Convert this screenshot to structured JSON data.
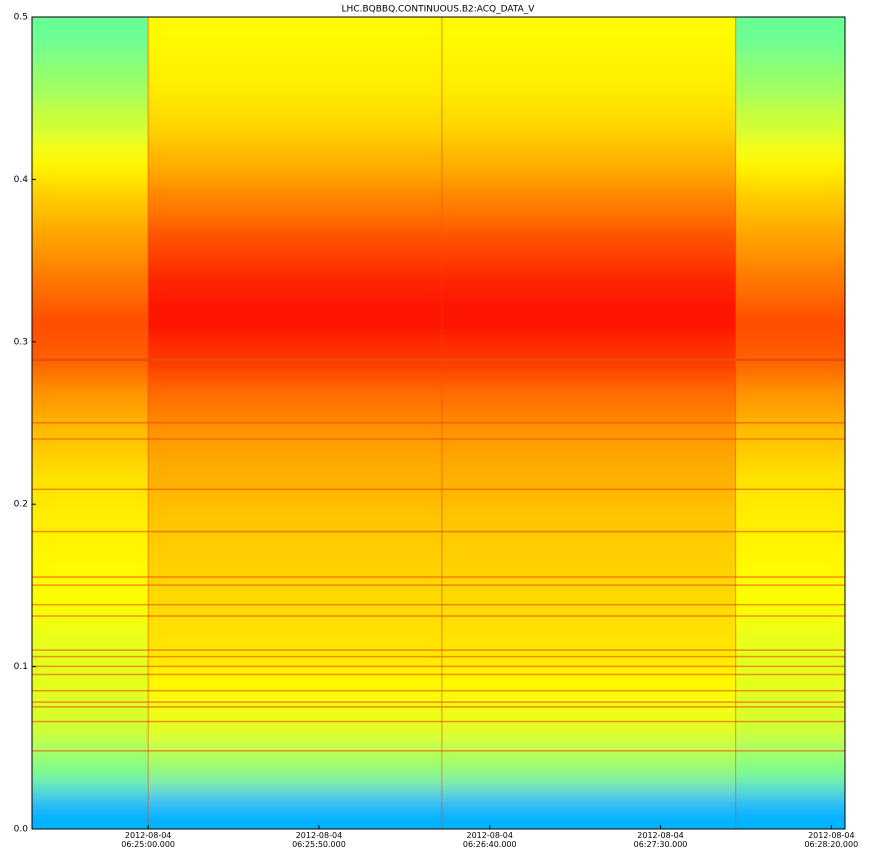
{
  "chart_data": {
    "type": "heatmap",
    "title": "LHC.BQBBQ.CONTINUOUS.B2:ACQ_DATA_V",
    "x_edges": [
      23066,
      23100,
      23186,
      23272,
      23304
    ],
    "y_edges": [
      0,
      0.025,
      0.05,
      0.075,
      0.1,
      0.125,
      0.15,
      0.175,
      0.2,
      0.225,
      0.25,
      0.275,
      0.3,
      0.325,
      0.35,
      0.375,
      0.4,
      0.425,
      0.45,
      0.475,
      0.5
    ],
    "z": [
      [
        0.3,
        0.5,
        0.58,
        0.6,
        0.6,
        0.62,
        0.63,
        0.64,
        0.65,
        0.68,
        0.72,
        0.78,
        0.8,
        0.76,
        0.72,
        0.68,
        0.63,
        0.57,
        0.52,
        0.48
      ],
      [
        0.3,
        0.52,
        0.6,
        0.63,
        0.65,
        0.66,
        0.67,
        0.68,
        0.7,
        0.72,
        0.76,
        0.82,
        0.86,
        0.84,
        0.8,
        0.75,
        0.7,
        0.66,
        0.64,
        0.63
      ],
      [
        0.3,
        0.52,
        0.6,
        0.63,
        0.65,
        0.66,
        0.67,
        0.68,
        0.7,
        0.72,
        0.76,
        0.82,
        0.86,
        0.84,
        0.8,
        0.75,
        0.7,
        0.66,
        0.64,
        0.63
      ],
      [
        0.3,
        0.5,
        0.58,
        0.6,
        0.6,
        0.62,
        0.63,
        0.64,
        0.65,
        0.68,
        0.72,
        0.78,
        0.8,
        0.76,
        0.72,
        0.68,
        0.63,
        0.57,
        0.52,
        0.48
      ]
    ],
    "lines": [
      0.289,
      0.25,
      0.24,
      0.209,
      0.183,
      0.155,
      0.15,
      0.138,
      0.131,
      0.11,
      0.106,
      0.1,
      0.095,
      0.085,
      0.078,
      0.075,
      0.066,
      0.048
    ],
    "line_color": "#ee4a10",
    "xlim": [
      23066,
      23304
    ],
    "ylim": [
      0,
      0.5
    ],
    "xticks": [
      {
        "value": 23100,
        "label": "2012-08-04\n06:25:00.000"
      },
      {
        "value": 23150,
        "label": "2012-08-04\n06:25:50.000"
      },
      {
        "value": 23200,
        "label": "2012-08-04\n06:26:40.000"
      },
      {
        "value": 23250,
        "label": "2012-08-04\n06:27:30.000"
      },
      {
        "value": 23300,
        "label": "2012-08-04\n06:28:20.000"
      }
    ],
    "yticks": [
      {
        "value": 0,
        "label": "0.0"
      },
      0.1,
      0.2,
      0.3,
      0.4,
      0.5
    ]
  }
}
